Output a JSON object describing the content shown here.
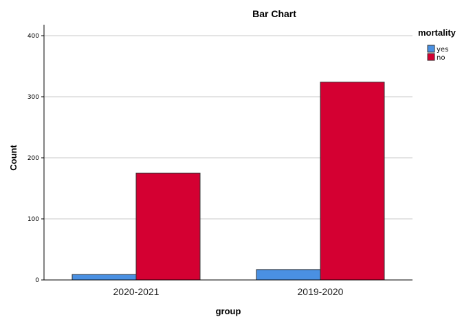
{
  "chart_data": {
    "type": "bar",
    "title": "Bar Chart",
    "xlabel": "group",
    "ylabel": "Count",
    "categories": [
      "2020-2021",
      "2019-2020"
    ],
    "series": [
      {
        "name": "yes",
        "color": "#4a90e2",
        "values": [
          9,
          17
        ]
      },
      {
        "name": "no",
        "color": "#d40032",
        "values": [
          175,
          324
        ]
      }
    ],
    "ylim": [
      0,
      420
    ],
    "yticks": [
      0,
      100,
      200,
      300,
      400
    ],
    "grid": true,
    "legend": {
      "title": "mortality",
      "position": "top-right"
    }
  }
}
